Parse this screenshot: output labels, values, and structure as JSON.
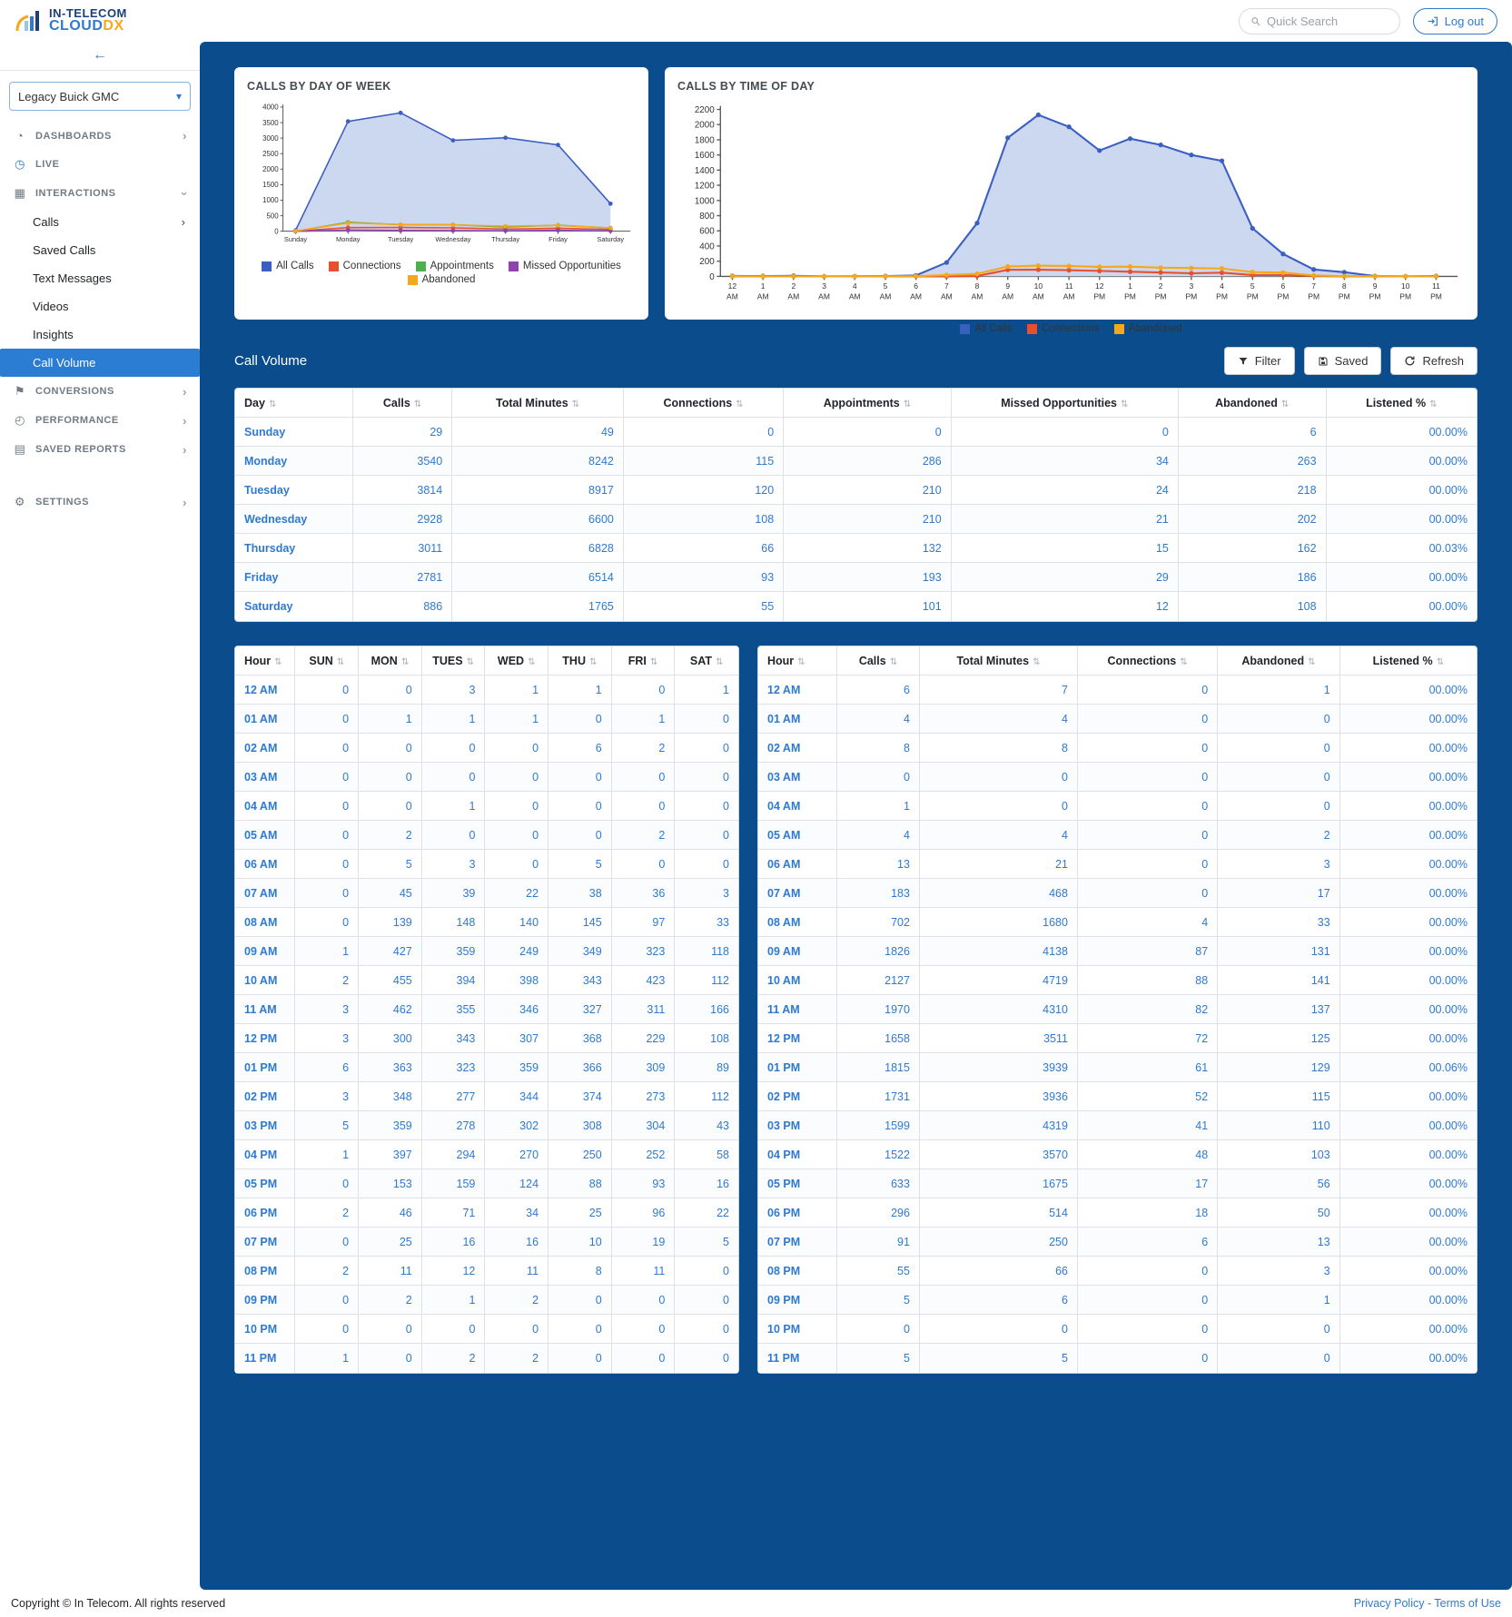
{
  "colors": {
    "main_bg": "#0b4d8c",
    "accent_blue": "#2e7ad0",
    "active_item_bg": "#2b7cd3",
    "brand_navy": "#1b3f7a",
    "brand_orange": "#f5a81c"
  },
  "icons": {
    "speedometer-icon": "◔",
    "clock-icon": "◷",
    "grid-icon": "▦",
    "flag-icon": "⚑",
    "gauge-icon": "◴",
    "file-icon": "▤",
    "gear-icon": "⚙",
    "chevron": "›",
    "sort-icon": "⇅",
    "back-arrow": "←",
    "select-chevron": "▾"
  },
  "header": {
    "brand_line1": "IN-TELECOM",
    "brand_cloud": "CLOUD",
    "brand_dx": "DX",
    "search_placeholder": "Quick Search",
    "logout_label": "Log out"
  },
  "sidebar": {
    "back_arrow": "←",
    "dealer_select": {
      "value": "Legacy Buick GMC"
    },
    "items": [
      {
        "label": "DASHBOARDS",
        "type": "section",
        "icon": "speedometer-icon",
        "chevron": "right"
      },
      {
        "label": "LIVE",
        "type": "section",
        "icon": "clock-icon",
        "icon_blue": true
      },
      {
        "label": "INTERACTIONS",
        "type": "section",
        "icon": "grid-icon",
        "chevron": "down",
        "expanded": true
      },
      {
        "label": "Calls",
        "type": "sub",
        "chevron": "right"
      },
      {
        "label": "Saved Calls",
        "type": "sub"
      },
      {
        "label": "Text Messages",
        "type": "sub"
      },
      {
        "label": "Videos",
        "type": "sub"
      },
      {
        "label": "Insights",
        "type": "sub"
      },
      {
        "label": "Call Volume",
        "type": "sub",
        "active": true
      },
      {
        "label": "CONVERSIONS",
        "type": "section",
        "icon": "flag-icon",
        "chevron": "right"
      },
      {
        "label": "PERFORMANCE",
        "type": "section",
        "icon": "gauge-icon",
        "chevron": "right"
      },
      {
        "label": "SAVED REPORTS",
        "type": "section",
        "icon": "file-icon",
        "chevron": "right"
      },
      {
        "label": "SETTINGS",
        "type": "section",
        "icon": "gear-icon",
        "chevron": "right",
        "gap_before": true
      }
    ]
  },
  "chart_data": [
    {
      "type": "area",
      "title": "CALLS BY DAY OF WEEK",
      "categories": [
        "Sunday",
        "Monday",
        "Tuesday",
        "Wednesday",
        "Thursday",
        "Friday",
        "Saturday"
      ],
      "ylim": [
        0,
        4000
      ],
      "ystep": 500,
      "grid": false,
      "legend_position": "bottom",
      "fill_color": "#ccd8f0",
      "series": [
        {
          "name": "All Calls",
          "color": "#3b5fc0",
          "fill": true,
          "values": [
            29,
            3540,
            3814,
            2928,
            3011,
            2781,
            886
          ]
        },
        {
          "name": "Connections",
          "color": "#e8502d",
          "values": [
            0,
            115,
            120,
            108,
            66,
            93,
            55
          ]
        },
        {
          "name": "Appointments",
          "color": "#4caf50",
          "values": [
            0,
            286,
            210,
            210,
            132,
            193,
            101
          ]
        },
        {
          "name": "Missed Opportunities",
          "color": "#8e44ad",
          "values": [
            0,
            34,
            24,
            21,
            15,
            29,
            12
          ]
        },
        {
          "name": "Abandoned",
          "color": "#f5a81c",
          "values": [
            6,
            263,
            218,
            202,
            162,
            186,
            108
          ]
        }
      ]
    },
    {
      "type": "area",
      "title": "CALLS BY TIME OF DAY",
      "categories": [
        "12 AM",
        "1 AM",
        "2 AM",
        "3 AM",
        "4 AM",
        "5 AM",
        "6 AM",
        "7 AM",
        "8 AM",
        "9 AM",
        "10 AM",
        "11 AM",
        "12 PM",
        "1 PM",
        "2 PM",
        "3 PM",
        "4 PM",
        "5 PM",
        "6 PM",
        "7 PM",
        "8 PM",
        "9 PM",
        "10 PM",
        "11 PM"
      ],
      "ylim": [
        0,
        2200
      ],
      "ystep": 200,
      "grid": false,
      "legend_position": "bottom",
      "fill_color": "#ccd8f0",
      "series": [
        {
          "name": "All Calls",
          "color": "#3b5fc0",
          "fill": true,
          "values": [
            6,
            4,
            8,
            0,
            1,
            4,
            13,
            183,
            702,
            1826,
            2127,
            1970,
            1658,
            1815,
            1731,
            1599,
            1522,
            633,
            296,
            91,
            55,
            5,
            0,
            5
          ]
        },
        {
          "name": "Connections",
          "color": "#e8502d",
          "values": [
            0,
            0,
            0,
            0,
            0,
            0,
            0,
            0,
            4,
            87,
            88,
            82,
            72,
            61,
            52,
            41,
            48,
            17,
            18,
            6,
            0,
            0,
            0,
            0
          ]
        },
        {
          "name": "Abandoned",
          "color": "#f5a81c",
          "values": [
            1,
            0,
            0,
            0,
            0,
            2,
            3,
            17,
            33,
            131,
            141,
            137,
            125,
            129,
            115,
            110,
            103,
            56,
            50,
            13,
            3,
            1,
            0,
            0
          ]
        }
      ]
    }
  ],
  "call_volume": {
    "title": "Call Volume",
    "buttons": {
      "filter": "Filter",
      "saved": "Saved",
      "refresh": "Refresh"
    },
    "day_table": {
      "headers": [
        "Day",
        "Calls",
        "Total Minutes",
        "Connections",
        "Appointments",
        "Missed Opportunities",
        "Abandoned",
        "Listened %"
      ],
      "rows": [
        [
          "Sunday",
          29,
          49,
          0,
          0,
          0,
          6,
          "00.00%"
        ],
        [
          "Monday",
          3540,
          8242,
          115,
          286,
          34,
          263,
          "00.00%"
        ],
        [
          "Tuesday",
          3814,
          8917,
          120,
          210,
          24,
          218,
          "00.00%"
        ],
        [
          "Wednesday",
          2928,
          6600,
          108,
          210,
          21,
          202,
          "00.00%"
        ],
        [
          "Thursday",
          3011,
          6828,
          66,
          132,
          15,
          162,
          "00.03%"
        ],
        [
          "Friday",
          2781,
          6514,
          93,
          193,
          29,
          186,
          "00.00%"
        ],
        [
          "Saturday",
          886,
          1765,
          55,
          101,
          12,
          108,
          "00.00%"
        ]
      ]
    },
    "hour_by_day_table": {
      "headers": [
        "Hour",
        "SUN",
        "MON",
        "TUES",
        "WED",
        "THU",
        "FRI",
        "SAT"
      ],
      "rows": [
        [
          "12 AM",
          0,
          0,
          3,
          1,
          1,
          0,
          1
        ],
        [
          "01 AM",
          0,
          1,
          1,
          1,
          0,
          1,
          0
        ],
        [
          "02 AM",
          0,
          0,
          0,
          0,
          6,
          2,
          0
        ],
        [
          "03 AM",
          0,
          0,
          0,
          0,
          0,
          0,
          0
        ],
        [
          "04 AM",
          0,
          0,
          1,
          0,
          0,
          0,
          0
        ],
        [
          "05 AM",
          0,
          2,
          0,
          0,
          0,
          2,
          0
        ],
        [
          "06 AM",
          0,
          5,
          3,
          0,
          5,
          0,
          0
        ],
        [
          "07 AM",
          0,
          45,
          39,
          22,
          38,
          36,
          3
        ],
        [
          "08 AM",
          0,
          139,
          148,
          140,
          145,
          97,
          33
        ],
        [
          "09 AM",
          1,
          427,
          359,
          249,
          349,
          323,
          118
        ],
        [
          "10 AM",
          2,
          455,
          394,
          398,
          343,
          423,
          112
        ],
        [
          "11 AM",
          3,
          462,
          355,
          346,
          327,
          311,
          166
        ],
        [
          "12 PM",
          3,
          300,
          343,
          307,
          368,
          229,
          108
        ],
        [
          "01 PM",
          6,
          363,
          323,
          359,
          366,
          309,
          89
        ],
        [
          "02 PM",
          3,
          348,
          277,
          344,
          374,
          273,
          112
        ],
        [
          "03 PM",
          5,
          359,
          278,
          302,
          308,
          304,
          43
        ],
        [
          "04 PM",
          1,
          397,
          294,
          270,
          250,
          252,
          58
        ],
        [
          "05 PM",
          0,
          153,
          159,
          124,
          88,
          93,
          16
        ],
        [
          "06 PM",
          2,
          46,
          71,
          34,
          25,
          96,
          22
        ],
        [
          "07 PM",
          0,
          25,
          16,
          16,
          10,
          19,
          5
        ],
        [
          "08 PM",
          2,
          11,
          12,
          11,
          8,
          11,
          0
        ],
        [
          "09 PM",
          0,
          2,
          1,
          2,
          0,
          0,
          0
        ],
        [
          "10 PM",
          0,
          0,
          0,
          0,
          0,
          0,
          0
        ],
        [
          "11 PM",
          1,
          0,
          2,
          2,
          0,
          0,
          0
        ]
      ]
    },
    "hour_summary_table": {
      "headers": [
        "Hour",
        "Calls",
        "Total Minutes",
        "Connections",
        "Abandoned",
        "Listened %"
      ],
      "rows": [
        [
          "12 AM",
          6,
          7,
          0,
          1,
          "00.00%"
        ],
        [
          "01 AM",
          4,
          4,
          0,
          0,
          "00.00%"
        ],
        [
          "02 AM",
          8,
          8,
          0,
          0,
          "00.00%"
        ],
        [
          "03 AM",
          0,
          0,
          0,
          0,
          "00.00%"
        ],
        [
          "04 AM",
          1,
          0,
          0,
          0,
          "00.00%"
        ],
        [
          "05 AM",
          4,
          4,
          0,
          2,
          "00.00%"
        ],
        [
          "06 AM",
          13,
          21,
          0,
          3,
          "00.00%"
        ],
        [
          "07 AM",
          183,
          468,
          0,
          17,
          "00.00%"
        ],
        [
          "08 AM",
          702,
          1680,
          4,
          33,
          "00.00%"
        ],
        [
          "09 AM",
          1826,
          4138,
          87,
          131,
          "00.00%"
        ],
        [
          "10 AM",
          2127,
          4719,
          88,
          141,
          "00.00%"
        ],
        [
          "11 AM",
          1970,
          4310,
          82,
          137,
          "00.00%"
        ],
        [
          "12 PM",
          1658,
          3511,
          72,
          125,
          "00.00%"
        ],
        [
          "01 PM",
          1815,
          3939,
          61,
          129,
          "00.06%"
        ],
        [
          "02 PM",
          1731,
          3936,
          52,
          115,
          "00.00%"
        ],
        [
          "03 PM",
          1599,
          4319,
          41,
          110,
          "00.00%"
        ],
        [
          "04 PM",
          1522,
          3570,
          48,
          103,
          "00.00%"
        ],
        [
          "05 PM",
          633,
          1675,
          17,
          56,
          "00.00%"
        ],
        [
          "06 PM",
          296,
          514,
          18,
          50,
          "00.00%"
        ],
        [
          "07 PM",
          91,
          250,
          6,
          13,
          "00.00%"
        ],
        [
          "08 PM",
          55,
          66,
          0,
          3,
          "00.00%"
        ],
        [
          "09 PM",
          5,
          6,
          0,
          1,
          "00.00%"
        ],
        [
          "10 PM",
          0,
          0,
          0,
          0,
          "00.00%"
        ],
        [
          "11 PM",
          5,
          5,
          0,
          0,
          "00.00%"
        ]
      ]
    }
  },
  "footer": {
    "copyright": "Copyright © In Telecom. All rights reserved",
    "links": "Privacy Policy - Terms of Use"
  }
}
